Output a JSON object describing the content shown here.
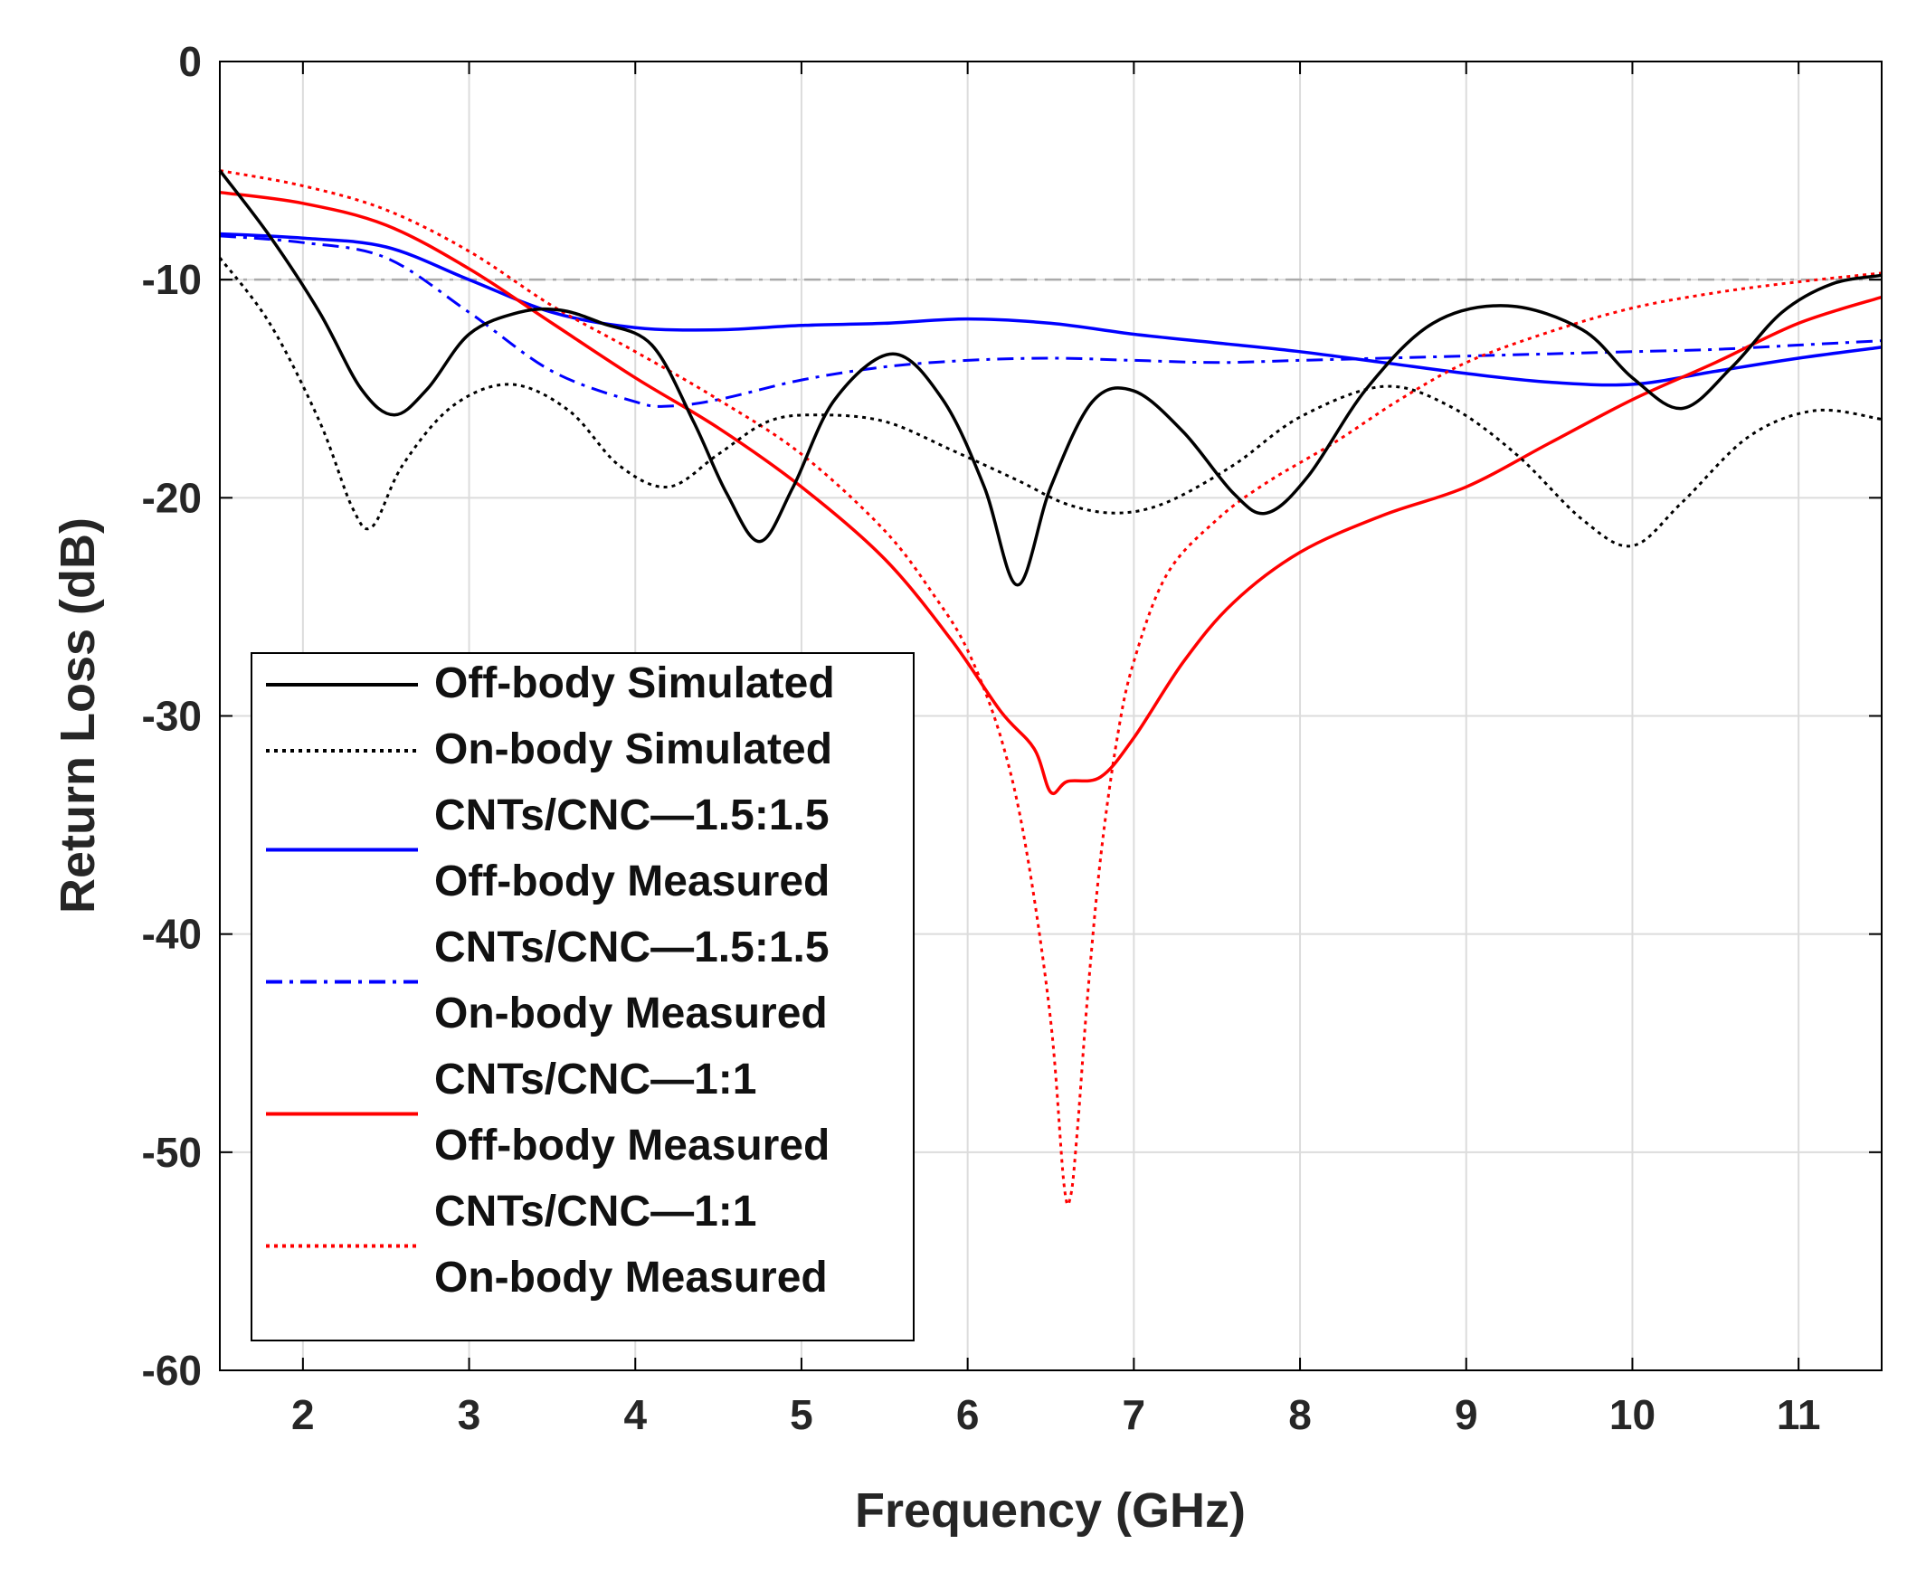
{
  "chart_data": {
    "type": "line",
    "title": "",
    "xlabel": "Frequency (GHz)",
    "ylabel": "Return Loss (dB)",
    "xlim": [
      1.5,
      11.5
    ],
    "ylim": [
      -60,
      0
    ],
    "xticks": [
      2,
      3,
      4,
      5,
      6,
      7,
      8,
      9,
      10,
      11
    ],
    "yticks": [
      0,
      -10,
      -20,
      -30,
      -40,
      -50,
      -60
    ],
    "grid": true,
    "legend_position": "lower-left",
    "reference_line": {
      "y": -10,
      "color": "#aaaaaa",
      "style": "dashdot"
    },
    "series": [
      {
        "name": "Off-body Simulated",
        "legend_lines": [
          "Off-body Simulated"
        ],
        "color": "#000000",
        "style": "solid",
        "x": [
          1.5,
          1.8,
          2.1,
          2.35,
          2.55,
          2.75,
          3.0,
          3.3,
          3.55,
          3.8,
          4.1,
          4.35,
          4.55,
          4.75,
          4.95,
          5.2,
          5.55,
          5.85,
          6.1,
          6.3,
          6.5,
          6.75,
          7.0,
          7.3,
          7.6,
          7.8,
          8.05,
          8.4,
          8.8,
          9.25,
          9.7,
          10.0,
          10.3,
          10.6,
          10.9,
          11.2,
          11.5
        ],
        "y": [
          -5,
          -8,
          -11.5,
          -15,
          -16.2,
          -15,
          -12.5,
          -11.5,
          -11.4,
          -12,
          -13,
          -16.5,
          -19.8,
          -22,
          -19.5,
          -15.5,
          -13.4,
          -15.5,
          -19.5,
          -24,
          -19.5,
          -15.6,
          -15.1,
          -17,
          -19.8,
          -20.7,
          -19,
          -15,
          -12,
          -11.2,
          -12.3,
          -14.5,
          -15.9,
          -14,
          -11.5,
          -10.2,
          -9.8
        ]
      },
      {
        "name": "On-body Simulated",
        "legend_lines": [
          "On-body Simulated"
        ],
        "color": "#000000",
        "style": "dotted",
        "x": [
          1.5,
          1.8,
          2.1,
          2.3,
          2.42,
          2.6,
          2.9,
          3.25,
          3.6,
          3.9,
          4.2,
          4.5,
          4.8,
          5.1,
          5.5,
          5.9,
          6.3,
          6.6,
          6.9,
          7.2,
          7.6,
          8.0,
          8.5,
          8.9,
          9.3,
          9.7,
          10.0,
          10.3,
          10.7,
          11.1,
          11.5
        ],
        "y": [
          -9,
          -12,
          -16.5,
          -20.5,
          -21.3,
          -18.5,
          -15.8,
          -14.8,
          -16,
          -18.5,
          -19.5,
          -18,
          -16.5,
          -16.2,
          -16.5,
          -17.8,
          -19.2,
          -20.3,
          -20.7,
          -20.2,
          -18.5,
          -16.3,
          -14.9,
          -15.8,
          -18,
          -21,
          -22.2,
          -20.2,
          -17.2,
          -16,
          -16.4
        ]
      },
      {
        "name": "CNTs/CNC—1.5:1.5 Off-body Measured",
        "legend_lines": [
          "CNTs/CNC—1.5:1.5",
          "Off-body Measured"
        ],
        "color": "#0000ff",
        "style": "solid",
        "x": [
          1.5,
          2.0,
          2.5,
          3.0,
          3.5,
          4.0,
          4.5,
          5.0,
          5.5,
          6.0,
          6.5,
          7.0,
          7.5,
          8.0,
          8.5,
          9.0,
          9.5,
          10.0,
          10.5,
          11.0,
          11.5
        ],
        "y": [
          -7.9,
          -8.1,
          -8.5,
          -10,
          -11.5,
          -12.2,
          -12.3,
          -12.1,
          -12,
          -11.8,
          -12,
          -12.5,
          -12.9,
          -13.3,
          -13.8,
          -14.3,
          -14.7,
          -14.8,
          -14.2,
          -13.6,
          -13.1
        ]
      },
      {
        "name": "CNTs/CNC—1.5:1.5 On-body Measured",
        "legend_lines": [
          "CNTs/CNC—1.5:1.5",
          "On-body Measured"
        ],
        "color": "#0000ff",
        "style": "dashdot",
        "x": [
          1.5,
          2.0,
          2.5,
          3.0,
          3.5,
          4.0,
          4.2,
          4.5,
          5.0,
          5.5,
          6.0,
          6.5,
          7.0,
          7.5,
          8.0,
          8.5,
          9.0,
          9.5,
          10.0,
          10.5,
          11.0,
          11.5
        ],
        "y": [
          -8.0,
          -8.3,
          -9.0,
          -11.5,
          -14.2,
          -15.6,
          -15.8,
          -15.5,
          -14.6,
          -14,
          -13.7,
          -13.6,
          -13.7,
          -13.8,
          -13.7,
          -13.6,
          -13.5,
          -13.4,
          -13.3,
          -13.2,
          -13.0,
          -12.8
        ]
      },
      {
        "name": "CNTs/CNC—1:1 Off-body Measured",
        "legend_lines": [
          "CNTs/CNC—1:1",
          "Off-body Measured"
        ],
        "color": "#ff0000",
        "style": "solid",
        "x": [
          1.5,
          2.0,
          2.5,
          3.0,
          3.5,
          4.0,
          4.5,
          5.0,
          5.5,
          5.9,
          6.2,
          6.4,
          6.5,
          6.6,
          6.8,
          7.0,
          7.3,
          7.6,
          8.0,
          8.5,
          9.0,
          9.5,
          10.0,
          10.5,
          11.0,
          11.5
        ],
        "y": [
          -6,
          -6.5,
          -7.5,
          -9.5,
          -12,
          -14.5,
          -16.8,
          -19.5,
          -22.8,
          -26.5,
          -29.8,
          -31.5,
          -33.5,
          -33,
          -32.8,
          -31,
          -27.5,
          -24.8,
          -22.5,
          -20.8,
          -19.5,
          -17.5,
          -15.5,
          -13.8,
          -12,
          -10.8
        ]
      },
      {
        "name": "CNTs/CNC—1:1 On-body Measured",
        "legend_lines": [
          "CNTs/CNC—1:1",
          "On-body Measured"
        ],
        "color": "#ff0000",
        "style": "dotted",
        "x": [
          1.5,
          2.0,
          2.5,
          3.0,
          3.5,
          4.0,
          4.5,
          5.0,
          5.5,
          5.8,
          6.0,
          6.2,
          6.35,
          6.5,
          6.58,
          6.62,
          6.66,
          6.72,
          6.8,
          6.9,
          7.0,
          7.2,
          7.5,
          7.8,
          8.2,
          8.6,
          9.0,
          9.5,
          10.0,
          10.5,
          11.0,
          11.5
        ],
        "y": [
          -5,
          -5.7,
          -6.8,
          -8.7,
          -11.2,
          -13.3,
          -15.5,
          -18,
          -21.5,
          -24.5,
          -27,
          -31,
          -36,
          -44,
          -51.5,
          -52,
          -49,
          -43,
          -36.5,
          -31,
          -27.5,
          -23.5,
          -21,
          -19.3,
          -17.5,
          -15.5,
          -13.8,
          -12.4,
          -11.3,
          -10.6,
          -10.1,
          -9.7
        ]
      }
    ]
  }
}
